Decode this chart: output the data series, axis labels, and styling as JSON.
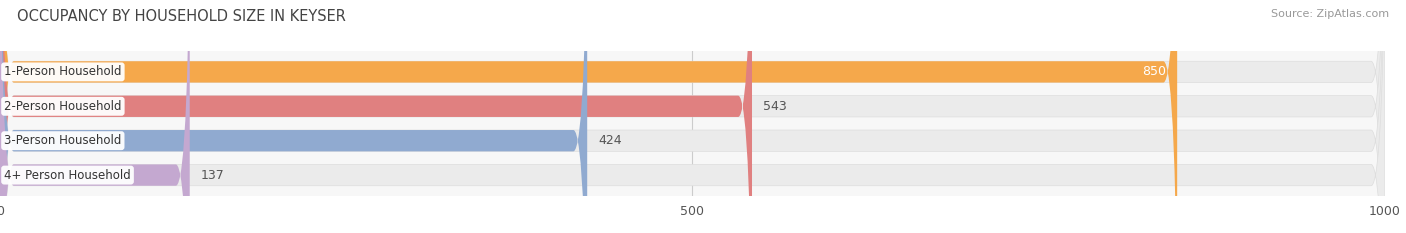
{
  "title": "OCCUPANCY BY HOUSEHOLD SIZE IN KEYSER",
  "source": "Source: ZipAtlas.com",
  "categories": [
    "1-Person Household",
    "2-Person Household",
    "3-Person Household",
    "4+ Person Household"
  ],
  "values": [
    850,
    543,
    424,
    137
  ],
  "bar_colors": [
    "#F5A84B",
    "#E08080",
    "#90AAD0",
    "#C4A8D0"
  ],
  "xlim": [
    0,
    1000
  ],
  "xticks": [
    0,
    500,
    1000
  ],
  "title_fontsize": 10.5,
  "source_fontsize": 8,
  "tick_fontsize": 9,
  "bar_label_fontsize": 9,
  "category_fontsize": 8.5,
  "bar_height": 0.62,
  "background_color": "#FFFFFF",
  "plot_bg_color": "#F7F7F7",
  "bar_bg_color": "#EBEBEB",
  "grid_color": "#CCCCCC"
}
